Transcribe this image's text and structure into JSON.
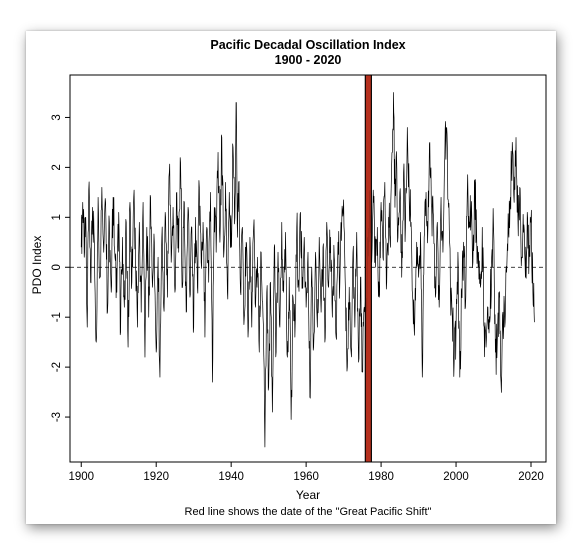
{
  "chart_data": {
    "type": "line",
    "title": "Pacific Decadal Oscillation Index",
    "subtitle": "1900 - 2020",
    "xlabel": "Year",
    "ylabel": "PDO Index",
    "caption": "Red line shows the date of the \"Great Pacific Shift\"",
    "xlim": [
      1897,
      2024
    ],
    "ylim": [
      -3.9,
      3.85
    ],
    "x_ticks": [
      1900,
      1920,
      1940,
      1960,
      1980,
      2000,
      2020
    ],
    "y_ticks": [
      -3,
      -2,
      -1,
      0,
      1,
      2,
      3
    ],
    "grid": false,
    "legend": "none",
    "zero_line": {
      "y": 0,
      "style": "dashed"
    },
    "shift_marker": {
      "year": 1976.6,
      "color": "#b5301f",
      "border_color": "#000000"
    },
    "series": [
      {
        "line_color": "#000000",
        "resolution": "monthly",
        "points": [
          [
            1900,
            0.4
          ],
          [
            1900.4,
            1.3
          ],
          [
            1900.8,
            0.2
          ],
          [
            1901.2,
            1.0
          ],
          [
            1901.6,
            -1.2
          ],
          [
            1902,
            1.55
          ],
          [
            1902.5,
            -0.3
          ],
          [
            1903,
            1.2
          ],
          [
            1903.5,
            0.5
          ],
          [
            1904,
            -1.5
          ],
          [
            1904.5,
            1.4
          ],
          [
            1905,
            -0.2
          ],
          [
            1905.5,
            1.6
          ],
          [
            1906,
            0.3
          ],
          [
            1906.5,
            1.3
          ],
          [
            1907,
            -0.9
          ],
          [
            1907.5,
            0.9
          ],
          [
            1908,
            -0.5
          ],
          [
            1908.5,
            1.4
          ],
          [
            1909,
            0.2
          ],
          [
            1909.5,
            -0.5
          ],
          [
            1910,
            1.1
          ],
          [
            1910.5,
            -1.3
          ],
          [
            1911,
            0.6
          ],
          [
            1911.5,
            -0.8
          ],
          [
            1912,
            0.9
          ],
          [
            1912.5,
            -1.6
          ],
          [
            1913,
            1.3
          ],
          [
            1913.5,
            -0.3
          ],
          [
            1914,
            1.4
          ],
          [
            1914.5,
            0.1
          ],
          [
            1915,
            -1.2
          ],
          [
            1915.5,
            0.9
          ],
          [
            1916,
            -0.9
          ],
          [
            1916.5,
            1.3
          ],
          [
            1917,
            -1.8
          ],
          [
            1917.5,
            0.8
          ],
          [
            1918,
            -1.0
          ],
          [
            1918.5,
            1.4
          ],
          [
            1919,
            -0.4
          ],
          [
            1919.5,
            0.5
          ],
          [
            1920,
            -1.7
          ],
          [
            1920.5,
            0.2
          ],
          [
            1921,
            -2.2
          ],
          [
            1921.5,
            0.6
          ],
          [
            1922,
            -0.8
          ],
          [
            1922.5,
            1.0
          ],
          [
            1923,
            -0.6
          ],
          [
            1923.5,
            1.9
          ],
          [
            1924,
            0.1
          ],
          [
            1924.5,
            1.2
          ],
          [
            1925,
            -0.5
          ],
          [
            1925.5,
            1.5
          ],
          [
            1926,
            0.3
          ],
          [
            1926.5,
            2.1
          ],
          [
            1927,
            -0.4
          ],
          [
            1927.5,
            1.3
          ],
          [
            1928,
            -0.9
          ],
          [
            1928.5,
            1.2
          ],
          [
            1929,
            -0.6
          ],
          [
            1929.5,
            0.8
          ],
          [
            1930,
            -1.2
          ],
          [
            1930.5,
            1.0
          ],
          [
            1931,
            -0.4
          ],
          [
            1931.5,
            1.6
          ],
          [
            1932,
            0.1
          ],
          [
            1932.5,
            0.9
          ],
          [
            1933,
            -1.4
          ],
          [
            1933.5,
            0.8
          ],
          [
            1934,
            -0.3
          ],
          [
            1934.5,
            1.5
          ],
          [
            1935,
            -2.3
          ],
          [
            1935.5,
            1.2
          ],
          [
            1936,
            0.3
          ],
          [
            1936.5,
            2.3
          ],
          [
            1937,
            0.5
          ],
          [
            1937.5,
            2.6
          ],
          [
            1938,
            0.2
          ],
          [
            1938.5,
            1.7
          ],
          [
            1939,
            -0.5
          ],
          [
            1939.5,
            1.5
          ],
          [
            1940,
            0.4
          ],
          [
            1940.5,
            2.4
          ],
          [
            1941,
            1.0
          ],
          [
            1941.3,
            3.3
          ],
          [
            1941.7,
            0.6
          ],
          [
            1942,
            1.7
          ],
          [
            1942.5,
            -0.5
          ],
          [
            1943,
            0.8
          ],
          [
            1943.5,
            -1.0
          ],
          [
            1944,
            0.5
          ],
          [
            1944.5,
            -1.4
          ],
          [
            1945,
            0.6
          ],
          [
            1945.5,
            -1.2
          ],
          [
            1946,
            0.8
          ],
          [
            1946.5,
            -0.8
          ],
          [
            1947,
            0.2
          ],
          [
            1947.5,
            -1.7
          ],
          [
            1948,
            0.3
          ],
          [
            1948.5,
            -1.0
          ],
          [
            1949,
            -3.6
          ],
          [
            1949.5,
            -0.5
          ],
          [
            1950,
            -2.4
          ],
          [
            1950.5,
            -0.3
          ],
          [
            1951,
            -2.9
          ],
          [
            1951.5,
            0.4
          ],
          [
            1952,
            -1.7
          ],
          [
            1952.5,
            0.3
          ],
          [
            1953,
            -1.2
          ],
          [
            1953.5,
            0.9
          ],
          [
            1954,
            -0.5
          ],
          [
            1954.5,
            0.7
          ],
          [
            1955,
            -1.8
          ],
          [
            1955.5,
            -0.2
          ],
          [
            1956,
            -3.05
          ],
          [
            1956.5,
            -0.6
          ],
          [
            1957,
            -1.4
          ],
          [
            1957.5,
            0.8
          ],
          [
            1958,
            -0.3
          ],
          [
            1958.5,
            1.1
          ],
          [
            1959,
            -0.2
          ],
          [
            1959.5,
            0.6
          ],
          [
            1960,
            -0.8
          ],
          [
            1960.5,
            0.3
          ],
          [
            1961,
            -2.6
          ],
          [
            1961.5,
            0.0
          ],
          [
            1962,
            -1.6
          ],
          [
            1962.5,
            0.3
          ],
          [
            1963,
            -1.2
          ],
          [
            1963.5,
            0.6
          ],
          [
            1964,
            -0.9
          ],
          [
            1964.5,
            0.4
          ],
          [
            1965,
            -1.5
          ],
          [
            1965.5,
            0.9
          ],
          [
            1966,
            -0.4
          ],
          [
            1966.5,
            0.6
          ],
          [
            1967,
            -1.0
          ],
          [
            1967.5,
            0.2
          ],
          [
            1968,
            -1.4
          ],
          [
            1968.5,
            0.5
          ],
          [
            1969,
            -0.3
          ],
          [
            1969.5,
            0.9
          ],
          [
            1970,
            1.35
          ],
          [
            1970.5,
            -0.5
          ],
          [
            1971,
            -2.0
          ],
          [
            1971.5,
            -0.4
          ],
          [
            1972,
            -1.7
          ],
          [
            1972.5,
            0.3
          ],
          [
            1973,
            -1.2
          ],
          [
            1973.5,
            0.7
          ],
          [
            1974,
            -1.9
          ],
          [
            1974.5,
            -0.2
          ],
          [
            1975,
            -2.1
          ],
          [
            1975.5,
            -0.8
          ],
          [
            1976,
            -1.3
          ],
          [
            1976.5,
            0.5
          ],
          [
            1977,
            1.2
          ],
          [
            1977.5,
            0.1
          ],
          [
            1978,
            1.3
          ],
          [
            1978.5,
            0.0
          ],
          [
            1979,
            0.8
          ],
          [
            1979.5,
            -0.6
          ],
          [
            1980,
            1.3
          ],
          [
            1980.5,
            0.2
          ],
          [
            1981,
            1.7
          ],
          [
            1981.5,
            -0.3
          ],
          [
            1982,
            1.0
          ],
          [
            1982.5,
            0.4
          ],
          [
            1983,
            2.3
          ],
          [
            1983.3,
            3.5
          ],
          [
            1983.7,
            1.2
          ],
          [
            1984,
            2.2
          ],
          [
            1984.5,
            0.6
          ],
          [
            1985,
            1.5
          ],
          [
            1985.5,
            -0.2
          ],
          [
            1986,
            1.9
          ],
          [
            1986.5,
            0.8
          ],
          [
            1987,
            2.8
          ],
          [
            1987.5,
            1.4
          ],
          [
            1988,
            0.9
          ],
          [
            1988.5,
            -0.7
          ],
          [
            1989,
            -1.0
          ],
          [
            1989.5,
            0.5
          ],
          [
            1990,
            -0.2
          ],
          [
            1990.5,
            0.7
          ],
          [
            1991,
            -2.2
          ],
          [
            1991.5,
            0.6
          ],
          [
            1992,
            1.5
          ],
          [
            1992.5,
            0.8
          ],
          [
            1993,
            2.5
          ],
          [
            1993.5,
            1.2
          ],
          [
            1994,
            1.0
          ],
          [
            1994.5,
            -0.6
          ],
          [
            1995,
            0.9
          ],
          [
            1995.5,
            -0.8
          ],
          [
            1996,
            1.4
          ],
          [
            1996.5,
            0.3
          ],
          [
            1997,
            2.2
          ],
          [
            1997.5,
            2.8
          ],
          [
            1998,
            1.2
          ],
          [
            1998.5,
            -0.5
          ],
          [
            1999,
            -1.0
          ],
          [
            1999.5,
            -1.9
          ],
          [
            2000,
            -1.2
          ],
          [
            2000.5,
            0.3
          ],
          [
            2001,
            -2.2
          ],
          [
            2001.5,
            -0.6
          ],
          [
            2002,
            0.5
          ],
          [
            2002.5,
            -0.8
          ],
          [
            2003,
            1.5
          ],
          [
            2003.5,
            0.8
          ],
          [
            2004,
            1.0
          ],
          [
            2004.5,
            0.1
          ],
          [
            2005,
            1.7
          ],
          [
            2005.5,
            0.6
          ],
          [
            2006,
            0.3
          ],
          [
            2006.5,
            -0.4
          ],
          [
            2007,
            0.8
          ],
          [
            2007.5,
            -1.2
          ],
          [
            2008,
            -1.6
          ],
          [
            2008.5,
            -0.8
          ],
          [
            2009,
            -1.1
          ],
          [
            2009.5,
            0.2
          ],
          [
            2010,
            0.8
          ],
          [
            2010.5,
            -1.7
          ],
          [
            2011,
            -1.5
          ],
          [
            2011.5,
            -0.6
          ],
          [
            2012,
            -2.3
          ],
          [
            2012.5,
            -0.9
          ],
          [
            2013,
            -1.2
          ],
          [
            2013.5,
            -0.1
          ],
          [
            2014,
            0.7
          ],
          [
            2014.5,
            1.4
          ],
          [
            2015,
            2.5
          ],
          [
            2015.5,
            1.3
          ],
          [
            2016,
            2.6
          ],
          [
            2016.5,
            1.0
          ],
          [
            2017,
            1.6
          ],
          [
            2017.5,
            0.2
          ],
          [
            2018,
            0.7
          ],
          [
            2018.5,
            -0.2
          ],
          [
            2019,
            1.1
          ],
          [
            2019.5,
            0.2
          ],
          [
            2020,
            0.9
          ],
          [
            2020.5,
            -0.5
          ],
          [
            2020.9,
            -1.1
          ]
        ]
      }
    ]
  }
}
